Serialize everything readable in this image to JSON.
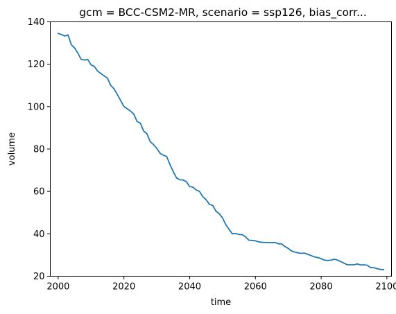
{
  "chart_data": {
    "type": "line",
    "title": "gcm = BCC-CSM2-MR, scenario = ssp126, bias_corr...",
    "xlabel": "time",
    "ylabel": "volume",
    "xlim": [
      1997.6,
      2101.4
    ],
    "ylim": [
      20,
      140
    ],
    "xticks": [
      2000,
      2020,
      2040,
      2060,
      2080,
      2100
    ],
    "yticks": [
      20,
      40,
      60,
      80,
      100,
      120,
      140
    ],
    "grid": false,
    "series_color": "#1f77b4",
    "series": [
      {
        "x": [
          2000,
          2001,
          2002,
          2003,
          2004,
          2005,
          2006,
          2007,
          2008,
          2009,
          2010,
          2011,
          2012,
          2013,
          2014,
          2015,
          2016,
          2017,
          2018,
          2019,
          2020,
          2021,
          2022,
          2023,
          2024,
          2025,
          2026,
          2027,
          2028,
          2029,
          2030,
          2031,
          2032,
          2033,
          2034,
          2035,
          2036,
          2037,
          2038,
          2039,
          2040,
          2041,
          2042,
          2043,
          2044,
          2045,
          2046,
          2047,
          2048,
          2049,
          2050,
          2051,
          2052,
          2053,
          2054,
          2055,
          2056,
          2057,
          2058,
          2059,
          2060,
          2061,
          2062,
          2063,
          2064,
          2065,
          2066,
          2067,
          2068,
          2069,
          2070,
          2071,
          2072,
          2073,
          2074,
          2075,
          2076,
          2077,
          2078,
          2079,
          2080,
          2081,
          2082,
          2083,
          2084,
          2085,
          2086,
          2087,
          2088,
          2089,
          2090,
          2091,
          2092,
          2093,
          2094,
          2095,
          2096,
          2097,
          2098,
          2099
        ],
        "values": [
          134.5,
          134.0,
          133.3,
          133.8,
          129.2,
          127.7,
          125.2,
          122.3,
          122.0,
          122.2,
          119.7,
          119.0,
          116.8,
          115.6,
          114.5,
          113.4,
          110.0,
          108.4,
          105.7,
          102.9,
          100.1,
          99.0,
          97.9,
          96.5,
          93.0,
          92.2,
          88.5,
          87.2,
          83.5,
          82.1,
          80.3,
          78.0,
          77.1,
          76.5,
          72.7,
          69.4,
          66.4,
          65.5,
          65.4,
          64.6,
          62.3,
          62.0,
          60.7,
          60.0,
          57.5,
          56.1,
          53.9,
          53.4,
          50.7,
          49.5,
          47.5,
          44.3,
          42.1,
          40.0,
          40.2,
          39.7,
          39.6,
          38.6,
          37.0,
          36.9,
          36.7,
          36.2,
          36.0,
          35.9,
          35.9,
          35.8,
          35.9,
          35.3,
          35.2,
          34.0,
          33.1,
          31.9,
          31.4,
          31.0,
          30.8,
          30.9,
          30.3,
          29.7,
          29.1,
          28.8,
          28.3,
          27.6,
          27.4,
          27.6,
          28.0,
          27.6,
          26.9,
          26.1,
          25.4,
          25.4,
          25.4,
          25.8,
          25.3,
          25.4,
          25.2,
          24.1,
          24.0,
          23.6,
          23.2,
          23.1
        ]
      }
    ]
  }
}
